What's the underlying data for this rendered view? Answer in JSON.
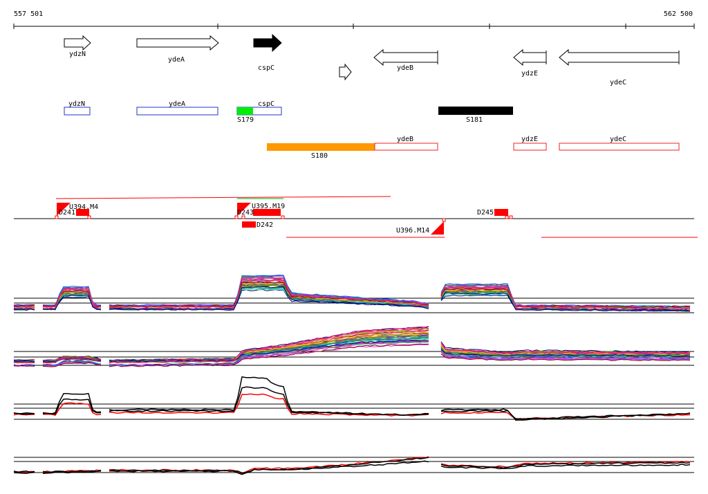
{
  "coordinates": {
    "start": "557 501",
    "end": "562 500"
  },
  "genes": [
    {
      "name": "ydzN",
      "strand": "+",
      "highlight": false
    },
    {
      "name": "ydeA",
      "strand": "+",
      "highlight": false
    },
    {
      "name": "cspC",
      "strand": "+",
      "highlight": true
    },
    {
      "name": "",
      "strand": "+",
      "highlight": false
    },
    {
      "name": "ydeB",
      "strand": "-",
      "highlight": false
    },
    {
      "name": "ydzE",
      "strand": "-",
      "highlight": false
    },
    {
      "name": "ydeC",
      "strand": "-",
      "highlight": false
    }
  ],
  "forward_boxes": [
    {
      "name": "ydzN"
    },
    {
      "name": "ydeA"
    },
    {
      "name": "cspC"
    }
  ],
  "reverse_boxes": [
    {
      "name": "ydeB"
    },
    {
      "name": "ydzE"
    },
    {
      "name": "ydeC"
    }
  ],
  "segments": [
    {
      "name": "S179",
      "color": "#00ee00"
    },
    {
      "name": "S181",
      "color": "#000000"
    },
    {
      "name": "S180",
      "color": "#ff9900"
    }
  ],
  "probe_labels": [
    {
      "name": "U394.M4"
    },
    {
      "name": "D241"
    },
    {
      "name": "U395.M19"
    },
    {
      "name": "D243"
    },
    {
      "name": "D242"
    },
    {
      "name": "D245"
    },
    {
      "name": "U396.M14"
    }
  ],
  "colors": {
    "forward": "#2233cc",
    "reverse": "#ee2222",
    "probe": "#ff0000"
  }
}
